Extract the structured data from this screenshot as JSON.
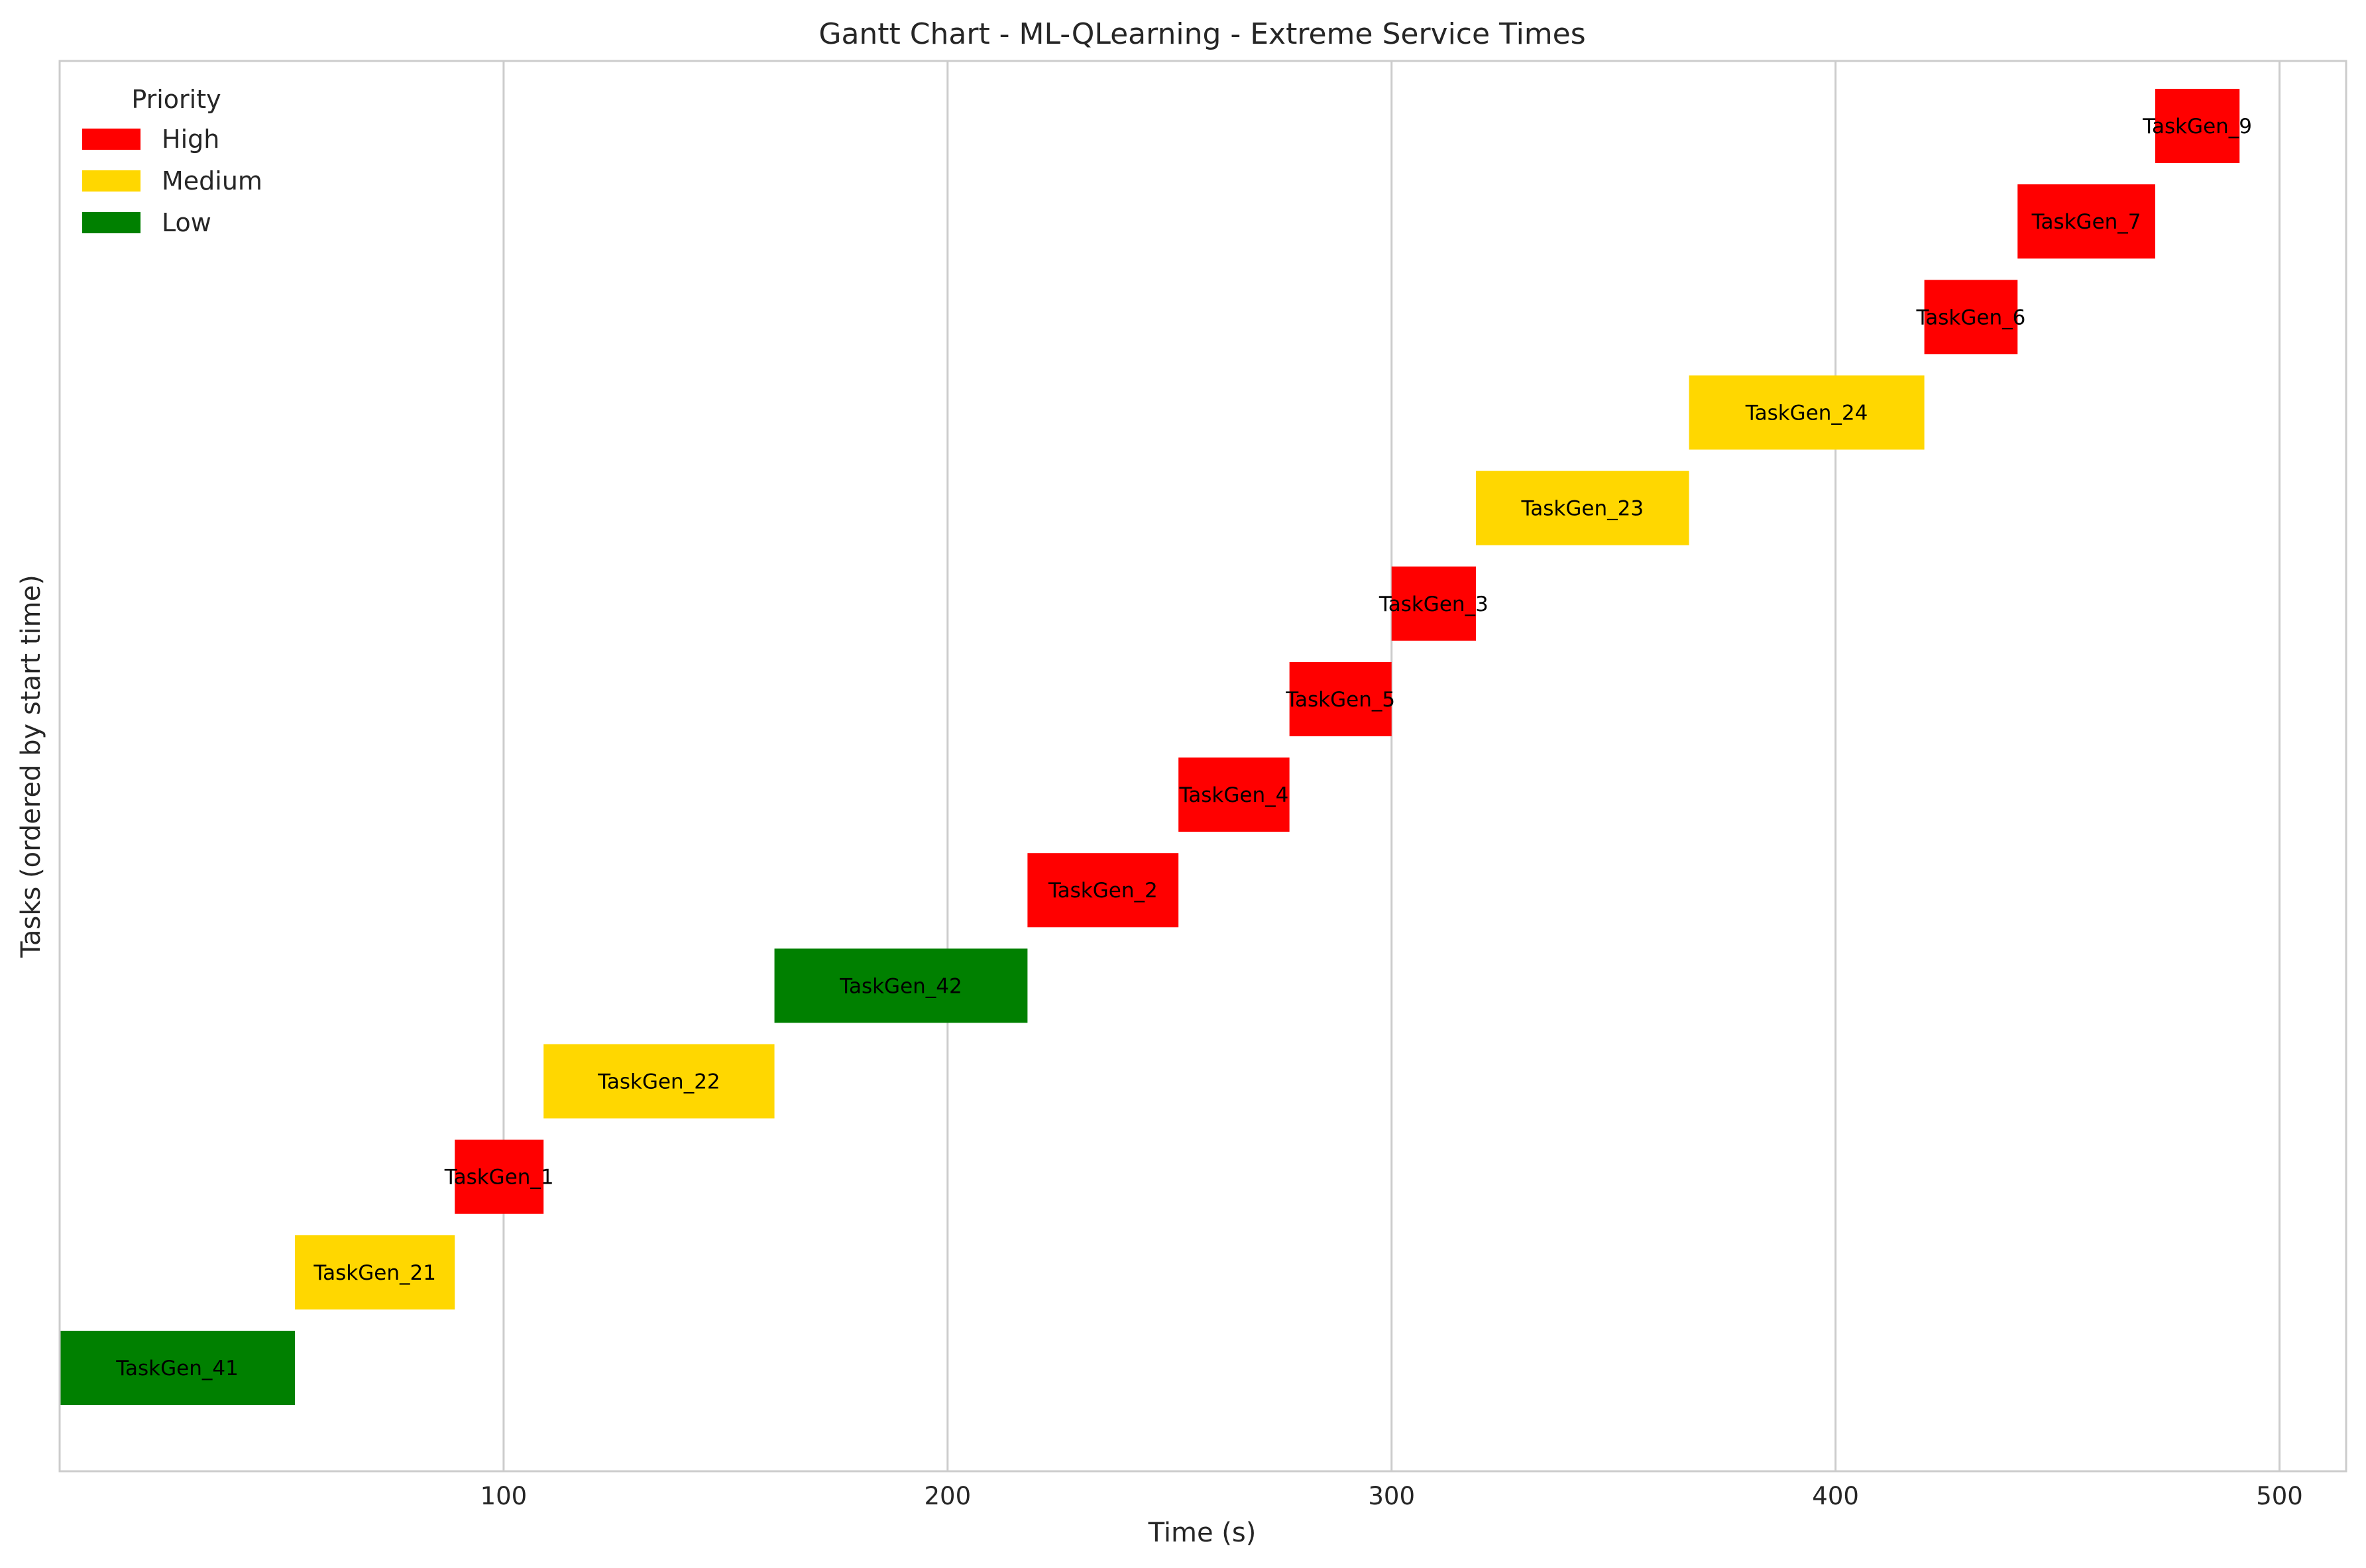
{
  "chart_data": {
    "type": "gantt",
    "title": "Gantt Chart - ML-QLearning - Extreme Service Times",
    "xlabel": "Time (s)",
    "ylabel": "Tasks (ordered by start time)",
    "xlim": [
      0,
      515
    ],
    "xticks": [
      100,
      200,
      300,
      400,
      500
    ],
    "grid": "vertical",
    "legend": {
      "title": "Priority",
      "placement": "top-left",
      "entries": [
        {
          "name": "High",
          "color": "#ff0000"
        },
        {
          "name": "Medium",
          "color": "#ffd700"
        },
        {
          "name": "Low",
          "color": "#008000"
        }
      ]
    },
    "tasks": [
      {
        "name": "TaskGen_41",
        "start": 0,
        "end": 53,
        "priority": "Low"
      },
      {
        "name": "TaskGen_21",
        "start": 53,
        "end": 89,
        "priority": "Medium"
      },
      {
        "name": "TaskGen_1",
        "start": 89,
        "end": 109,
        "priority": "High"
      },
      {
        "name": "TaskGen_22",
        "start": 109,
        "end": 161,
        "priority": "Medium"
      },
      {
        "name": "TaskGen_42",
        "start": 161,
        "end": 218,
        "priority": "Low"
      },
      {
        "name": "TaskGen_2",
        "start": 218,
        "end": 252,
        "priority": "High"
      },
      {
        "name": "TaskGen_4",
        "start": 252,
        "end": 277,
        "priority": "High"
      },
      {
        "name": "TaskGen_5",
        "start": 277,
        "end": 300,
        "priority": "High"
      },
      {
        "name": "TaskGen_3",
        "start": 300,
        "end": 319,
        "priority": "High"
      },
      {
        "name": "TaskGen_23",
        "start": 319,
        "end": 367,
        "priority": "Medium"
      },
      {
        "name": "TaskGen_24",
        "start": 367,
        "end": 420,
        "priority": "Medium"
      },
      {
        "name": "TaskGen_6",
        "start": 420,
        "end": 441,
        "priority": "High"
      },
      {
        "name": "TaskGen_7",
        "start": 441,
        "end": 472,
        "priority": "High"
      },
      {
        "name": "TaskGen_9",
        "start": 472,
        "end": 491,
        "priority": "High"
      }
    ]
  }
}
